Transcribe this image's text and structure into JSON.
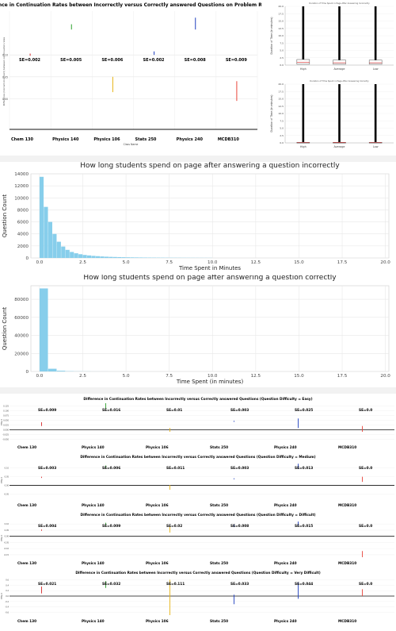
{
  "chart_data": [
    {
      "id": "roulette",
      "type": "errorbar",
      "title": "Difference in Continuation Rates between Incorrectly versus Correctly answered Questions on Problem Roulette",
      "xlabel": "Class Name",
      "ylabel": "Difference (Correct-Incorrect) between continuation rates",
      "categories": [
        "Chem 130",
        "Physics 140",
        "Physics 106",
        "Stats 250",
        "Physics 240",
        "MCDB310"
      ],
      "se_labels": [
        "SE=0.002",
        "SE=0.005",
        "SE=0.006",
        "SE=0.002",
        "SE=0.008",
        "SE=0.009"
      ],
      "ytick_labels": [
        "0.10",
        "0.05",
        "0.00"
      ],
      "ylim": [
        -0.07,
        0.2
      ],
      "series": [
        {
          "color": "#d62728",
          "values": [
            [
              0.098,
              0.103
            ],
            [
              0.158,
              0.17
            ],
            [
              0.015,
              0.05
            ],
            [
              0.1,
              0.108
            ],
            [
              0.158,
              0.185
            ],
            [
              -0.005,
              0.04
            ]
          ]
        }
      ],
      "bar_colors": [
        "#d62728",
        "#2ca02c",
        "#e7b416",
        "#1f3fbf",
        "#1f3fbf",
        "#e8443a"
      ]
    },
    {
      "id": "boxplots",
      "type": "box",
      "panels": [
        {
          "title": "Duration of Time Spent in Page After Answering Incorrectly",
          "ylabel": "Duration of Time (in minutes)",
          "categories": [
            "High",
            "Average",
            "Low"
          ],
          "ytick_labels": [
            "20.0",
            "17.5",
            "15.0",
            "12.5",
            "10.0",
            "7.5",
            "5.0",
            "2.5",
            "0.0"
          ],
          "ylim": [
            0,
            20
          ],
          "boxes": [
            [
              0.3,
              0.9,
              1.9
            ],
            [
              0.3,
              0.8,
              1.7
            ],
            [
              0.3,
              0.8,
              1.7
            ]
          ]
        },
        {
          "title": "Duration of Time Spent in Page After Answering Correctly",
          "ylabel": "Duration of Time (in minutes)",
          "categories": [
            "High",
            "Average",
            "Low"
          ],
          "ytick_labels": [
            "20.0",
            "17.5",
            "15.0",
            "12.5",
            "10.0",
            "7.5",
            "5.0",
            "2.5",
            "0.0"
          ],
          "ylim": [
            0,
            20
          ],
          "boxes": [
            [
              0.05,
              0.1,
              0.2
            ],
            [
              0.05,
              0.1,
              0.2
            ],
            [
              0.05,
              0.1,
              0.2
            ]
          ]
        }
      ]
    },
    {
      "id": "hist_incorrect",
      "type": "bar",
      "title": "How long students spend on page after answering a question incorrectly",
      "xlabel": "Time Spent in Minutes",
      "ylabel": "Question Count",
      "ylim": [
        0,
        14000
      ],
      "xlim": [
        -0.5,
        20.2
      ],
      "ytick_labels": [
        "0",
        "2000",
        "4000",
        "6000",
        "8000",
        "10000",
        "12000",
        "14000"
      ],
      "xtick_labels": [
        "0.0",
        "2.5",
        "5.0",
        "7.5",
        "10.0",
        "12.5",
        "15.0",
        "17.5",
        "20.0"
      ],
      "bin_width": 0.25,
      "values": [
        13500,
        8500,
        6000,
        4000,
        2700,
        1900,
        1350,
        1000,
        780,
        620,
        500,
        420,
        350,
        300,
        250,
        210,
        180,
        160,
        140,
        120,
        105,
        95,
        85,
        75,
        65,
        60,
        55,
        50,
        45,
        40,
        38,
        35,
        32,
        30,
        28,
        26,
        24,
        22,
        20,
        18
      ],
      "color": "#87ceeb"
    },
    {
      "id": "hist_correct",
      "type": "bar",
      "title": "How long students spend on page after answering a question correctly",
      "xlabel": "Time Spent (in minutes)",
      "ylabel": "Question Count",
      "ylim": [
        0,
        95000
      ],
      "xlim": [
        -0.5,
        20.2
      ],
      "ytick_labels": [
        "0",
        "20000",
        "40000",
        "60000",
        "80000"
      ],
      "xtick_labels": [
        "0.0",
        "2.5",
        "5.0",
        "7.5",
        "10.0",
        "12.5",
        "15.0",
        "17.5",
        "20.0"
      ],
      "bin_width": 0.5,
      "values": [
        92000,
        3000,
        800,
        300,
        150,
        80,
        50,
        30,
        20,
        15
      ],
      "color": "#87ceeb"
    },
    {
      "id": "difficulty",
      "type": "errorbar",
      "categories": [
        "Chem 130",
        "Physics 140",
        "Physics 106",
        "Stats 250",
        "Physics 240",
        "MCDB310"
      ],
      "ylabel": "Effect",
      "bar_colors": [
        "#d62728",
        "#2ca02c",
        "#e7b416",
        "#1f3fbf",
        "#1f3fbf",
        "#e8443a"
      ],
      "panels": [
        {
          "title": "Difference in Continuation Rates between Incorrectly versus Correctly answered Questions (Question Difficulty = Easy)",
          "se_labels": [
            "SE=0.009",
            "SE=0.016",
            "SE=0.01",
            "SE=0.003",
            "SE=0.025",
            "SE=0.0"
          ],
          "ytick_labels": [
            "0.125",
            "0.100",
            "0.075",
            "0.050",
            "0.025",
            "0.000",
            "-0.025",
            "-0.050"
          ],
          "ylim": [
            -0.06,
            0.14
          ],
          "intervals": [
            [
              0.02,
              0.04
            ],
            [
              0.11,
              0.14
            ],
            [
              -0.01,
              0.01
            ],
            [
              0.042,
              0.048
            ],
            [
              0.01,
              0.06
            ],
            [
              -0.01,
              0.02
            ]
          ]
        },
        {
          "title": "Difference in Continuation Rates between Incorrectly versus Correctly answered Questions (Question Difficulty = Medium)",
          "se_labels": [
            "SE=0.003",
            "SE=0.006",
            "SE=0.011",
            "SE=0.003",
            "SE=0.013",
            "SE=0.0"
          ],
          "ytick_labels": [
            "0.10",
            "0.05",
            "0.00",
            "-0.05"
          ],
          "ylim": [
            -0.08,
            0.14
          ],
          "intervals": [
            [
              0.043,
              0.05
            ],
            [
              0.1,
              0.115
            ],
            [
              -0.025,
              0.002
            ],
            [
              0.035,
              0.041
            ],
            [
              0.095,
              0.125
            ],
            [
              0.02,
              0.05
            ]
          ]
        },
        {
          "title": "Difference in Continuation Rates between Incorrectly versus Correctly answered Questions (Question Difficulty = Difficult)",
          "se_labels": [
            "SE=0.004",
            "SE=0.009",
            "SE=0.02",
            "SE=0.008",
            "SE=0.015",
            "SE=0.0"
          ],
          "ytick_labels": [
            "0.10",
            "0.05",
            "0.00",
            "-0.05",
            "-0.10",
            "-0.15"
          ],
          "ylim": [
            -0.17,
            0.14
          ],
          "intervals": [
            [
              0.045,
              0.055
            ],
            [
              0.09,
              0.11
            ],
            [
              0.03,
              0.08
            ],
            [
              0.075,
              0.095
            ],
            [
              0.085,
              0.12
            ],
            [
              -0.17,
              -0.12
            ]
          ]
        },
        {
          "title": "Difference in Continuation Rates between Incorrectly versus Correctly answered Questions (Question Difficulty = Very Difficult)",
          "se_labels": [
            "SE=0.021",
            "SE=0.032",
            "SE=0.111",
            "SE=0.033",
            "SE=0.044",
            "SE=0.0"
          ],
          "ytick_labels": [
            "0.6",
            "0.4",
            "0.2",
            "0.0",
            "-0.2",
            "-0.4",
            "-0.6"
          ],
          "ylim": [
            -0.7,
            0.7
          ],
          "intervals": [
            [
              0.1,
              0.35
            ],
            [
              0.3,
              0.55
            ],
            [
              -0.7,
              0.6
            ],
            [
              -0.3,
              0.05
            ],
            [
              -0.1,
              0.5
            ],
            [
              0.0,
              0.25
            ]
          ]
        }
      ]
    }
  ]
}
